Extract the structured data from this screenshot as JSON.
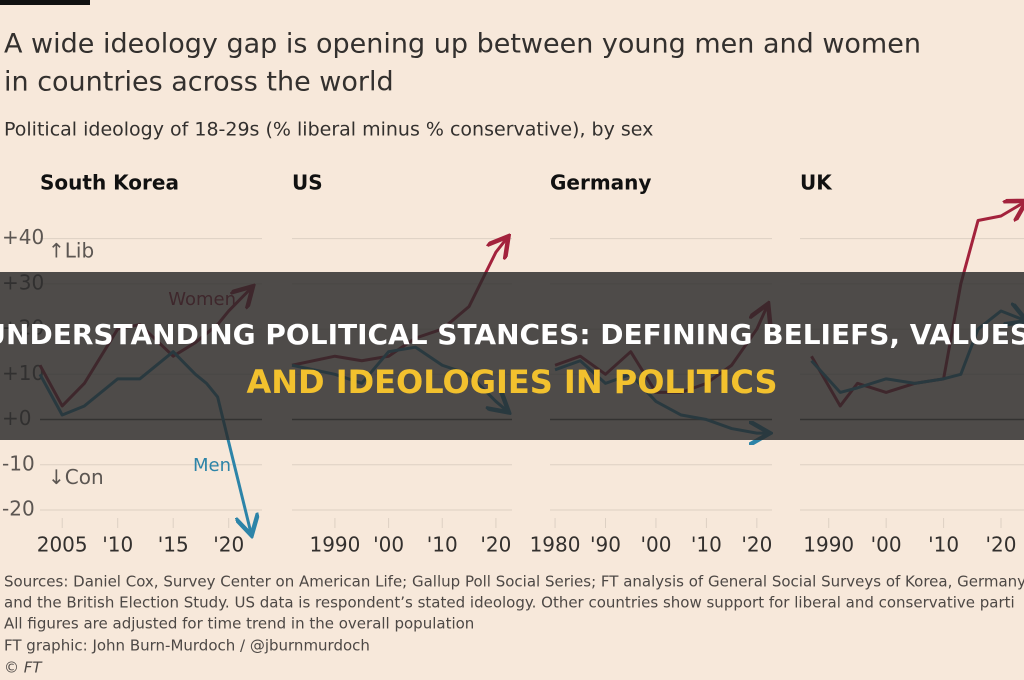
{
  "header": {
    "title_lines": [
      "A wide ideology gap is opening up between young men and women",
      "in countries across the world"
    ],
    "subtitle": "Political ideology of 18-29s (% liberal minus % conservative), by sex"
  },
  "banner": {
    "line1": "UNDERSTANDING POLITICAL STANCES: DEFINING BELIEFS, VALUES,",
    "line2": "AND IDEOLOGIES IN POLITICS"
  },
  "footer": {
    "lines": [
      "Sources: Daniel Cox, Survey Center on American Life; Gallup Poll Social Series; FT analysis of General Social Surveys of Korea, Germany",
      "and the British Election Study. US data is respondent’s stated ideology. Other countries show support for liberal and conservative parti",
      "All figures are adjusted for time trend in the overall population",
      "FT graphic: John Burn-Murdoch / @jburnmurdoch",
      "© FT"
    ]
  },
  "chart_data": [
    {
      "type": "line",
      "title": "South Korea",
      "annotations": {
        "lib": "↑Lib",
        "con": "↓Con"
      },
      "x": [
        2003,
        2005,
        2007,
        2010,
        2012,
        2015,
        2017,
        2018,
        2019,
        2020,
        2022
      ],
      "series": [
        {
          "name": "Women",
          "color": "#a3223c",
          "values": [
            12,
            3,
            8,
            20,
            21,
            14,
            17,
            19,
            21,
            24,
            29
          ]
        },
        {
          "name": "Men",
          "color": "#2d84a8",
          "values": [
            10,
            1,
            3,
            9,
            9,
            15,
            10,
            8,
            5,
            -5,
            -25
          ]
        }
      ],
      "xlim": [
        2003,
        2023
      ],
      "ylim": [
        -20,
        45
      ],
      "xticks": [
        2005,
        {
          "value": 2010,
          "label": "'10"
        },
        {
          "value": 2015,
          "label": "'15"
        },
        {
          "value": 2020,
          "label": "'20"
        }
      ],
      "yticks": [
        {
          "value": 40,
          "label": "+40"
        },
        {
          "value": 30,
          "label": "+30"
        },
        {
          "value": 20,
          "label": "+20"
        },
        {
          "value": 10,
          "label": "+10"
        },
        {
          "value": 0,
          "label": "+0"
        },
        -10,
        -20
      ]
    },
    {
      "type": "line",
      "title": "US",
      "x": [
        1982,
        1990,
        1995,
        2000,
        2005,
        2010,
        2015,
        2020,
        2022
      ],
      "series": [
        {
          "color": "#a3223c",
          "values": [
            12,
            14,
            13,
            14,
            18,
            20,
            25,
            37,
            40
          ]
        },
        {
          "color": "#2d84a8",
          "values": [
            12,
            10,
            8,
            15,
            16,
            12,
            10,
            4,
            2
          ]
        }
      ],
      "xlim": [
        1982,
        2023
      ],
      "ylim": [
        -20,
        45
      ],
      "xticks": [
        1990,
        {
          "value": 2000,
          "label": "'00"
        },
        {
          "value": 2010,
          "label": "'10"
        },
        {
          "value": 2020,
          "label": "'20"
        }
      ]
    },
    {
      "type": "line",
      "title": "Germany",
      "x": [
        1980,
        1985,
        1990,
        1995,
        2000,
        2005,
        2010,
        2015,
        2020,
        2022
      ],
      "series": [
        {
          "color": "#a3223c",
          "values": [
            12,
            14,
            10,
            15,
            6,
            6,
            8,
            12,
            20,
            25
          ]
        },
        {
          "color": "#2d84a8",
          "values": [
            11,
            13,
            8,
            10,
            4,
            1,
            0,
            -2,
            -3,
            -3
          ]
        }
      ],
      "xlim": [
        1979,
        2023
      ],
      "ylim": [
        -20,
        45
      ],
      "xticks": [
        1980,
        {
          "value": 1990,
          "label": "'90"
        },
        {
          "value": 2000,
          "label": "'00"
        },
        {
          "value": 2010,
          "label": "'10"
        },
        {
          "value": 2020,
          "label": "'20"
        }
      ]
    },
    {
      "type": "line",
      "title": "UK",
      "x": [
        1987,
        1992,
        1995,
        2000,
        2005,
        2010,
        2013,
        2016,
        2020,
        2024
      ],
      "series": [
        {
          "color": "#a3223c",
          "values": [
            14,
            3,
            8,
            6,
            8,
            9,
            30,
            44,
            45,
            48
          ]
        },
        {
          "color": "#2d84a8",
          "values": [
            13,
            6,
            7,
            9,
            8,
            9,
            10,
            20,
            24,
            22
          ]
        }
      ],
      "xlim": [
        1985,
        2024
      ],
      "ylim": [
        -20,
        45
      ],
      "xticks": [
        1990,
        {
          "value": 2000,
          "label": "'00"
        },
        {
          "value": 2010,
          "label": "'10"
        },
        {
          "value": 2020,
          "label": "'20"
        }
      ]
    }
  ]
}
